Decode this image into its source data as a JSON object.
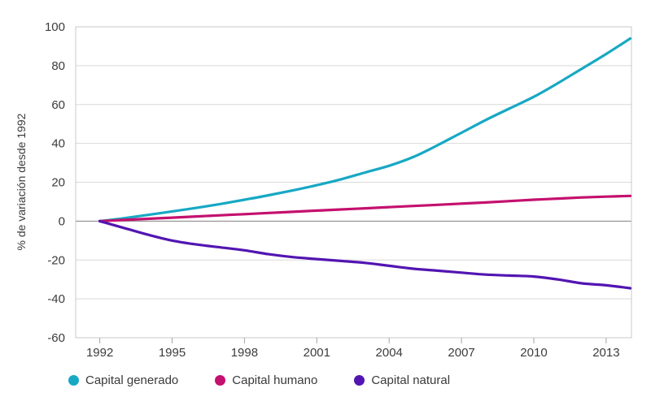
{
  "chart_data": {
    "type": "line",
    "title": "",
    "xlabel": "",
    "ylabel": "% de variación desde 1992",
    "x": [
      1992,
      1993,
      1994,
      1995,
      1996,
      1997,
      1998,
      1999,
      2000,
      2001,
      2002,
      2003,
      2004,
      2005,
      2006,
      2007,
      2008,
      2009,
      2010,
      2011,
      2012,
      2013,
      2014
    ],
    "x_ticks": [
      1992,
      1995,
      1998,
      2001,
      2004,
      2007,
      2010,
      2013
    ],
    "y_ticks": [
      100,
      80,
      60,
      40,
      20,
      0,
      -20,
      -40,
      -60
    ],
    "xlim": [
      1991,
      2014.05
    ],
    "ylim": [
      -60,
      100
    ],
    "grid": "horizontal",
    "zero_line": true,
    "legend_position": "bottom",
    "series": [
      {
        "name": "Capital generado",
        "color": "#17A8C4",
        "values": [
          0,
          1.5,
          3.2,
          5,
          6.8,
          8.8,
          11,
          13.3,
          15.8,
          18.5,
          21.5,
          25,
          28.5,
          33,
          39,
          45.5,
          52,
          58,
          64,
          71,
          78.5,
          86,
          94
        ]
      },
      {
        "name": "Capital humano",
        "color": "#C4106E",
        "values": [
          0,
          0.6,
          1.2,
          1.8,
          2.4,
          3,
          3.6,
          4.2,
          4.8,
          5.4,
          6,
          6.6,
          7.2,
          7.8,
          8.4,
          9,
          9.6,
          10.3,
          11,
          11.6,
          12.2,
          12.6,
          13
        ]
      },
      {
        "name": "Capital natural",
        "color": "#5215B2",
        "values": [
          0,
          -3.5,
          -7,
          -10,
          -12,
          -13.5,
          -15,
          -17,
          -18.5,
          -19.5,
          -20.5,
          -21.5,
          -23,
          -24.5,
          -25.5,
          -26.5,
          -27.5,
          -28,
          -28.5,
          -30,
          -32,
          -33,
          -34.5
        ]
      }
    ]
  },
  "colors": {
    "gridline": "#D9D9D9",
    "frame": "#C9C9C9",
    "zero_line": "#808080",
    "tick_mark": "#A6A6A6",
    "text": "#3C3C3C"
  }
}
